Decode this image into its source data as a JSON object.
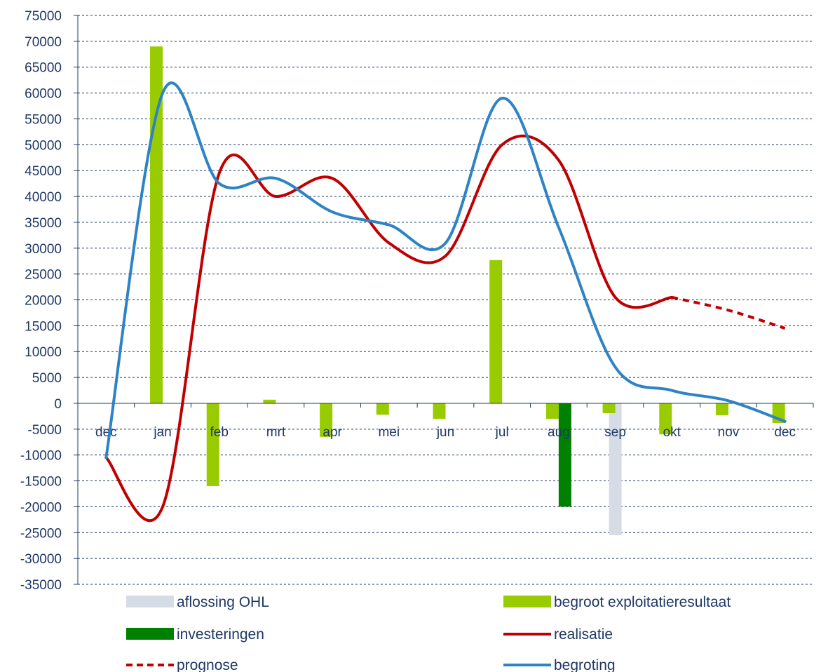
{
  "chart_data": {
    "type": "bar",
    "categories": [
      "dec",
      "jan",
      "feb",
      "mrt",
      "apr",
      "mei",
      "jun",
      "jul",
      "aug",
      "sep",
      "okt",
      "nov",
      "dec"
    ],
    "ylim": [
      -35000,
      75000
    ],
    "ytick_step": 5000,
    "grid": true,
    "legend_position": "bottom",
    "bar_series": [
      {
        "name": "aflossing OHL",
        "color": "#d6dce5",
        "values": [
          null,
          null,
          null,
          null,
          null,
          null,
          null,
          null,
          null,
          -25500,
          null,
          null,
          null
        ]
      },
      {
        "name": "begroot exploitatieresultaat",
        "color": "#99cc00",
        "values": [
          null,
          69000,
          -16000,
          700,
          -6500,
          -2200,
          -3000,
          27700,
          -3000,
          -1900,
          -6000,
          -2300,
          -3800
        ]
      },
      {
        "name": "investeringen",
        "color": "#008000",
        "values": [
          null,
          null,
          null,
          null,
          null,
          null,
          null,
          null,
          -20000,
          null,
          null,
          null,
          null
        ]
      }
    ],
    "line_series": [
      {
        "name": "realisatie",
        "color": "#c00000",
        "dashed": false,
        "values": [
          -10500,
          -20000,
          44500,
          40000,
          43500,
          31000,
          28500,
          50000,
          47000,
          20500,
          20500,
          null,
          null
        ]
      },
      {
        "name": "prognose",
        "color": "#c00000",
        "dashed": true,
        "values": [
          null,
          null,
          null,
          null,
          null,
          null,
          null,
          null,
          null,
          null,
          20500,
          18000,
          14500
        ]
      },
      {
        "name": "begroting",
        "color": "#2e83c5",
        "dashed": false,
        "values": [
          -10500,
          60000,
          42500,
          43500,
          37000,
          34500,
          31000,
          59000,
          34000,
          7000,
          2500,
          500,
          -3500
        ]
      }
    ],
    "legend": [
      {
        "label": "aflossing OHL",
        "kind": "bar",
        "color": "#d6dce5"
      },
      {
        "label": "begroot exploitatieresultaat",
        "kind": "bar",
        "color": "#99cc00"
      },
      {
        "label": "investeringen",
        "kind": "bar",
        "color": "#008000"
      },
      {
        "label": "realisatie",
        "kind": "line",
        "color": "#c00000",
        "dashed": false
      },
      {
        "label": "prognose",
        "kind": "line",
        "color": "#c00000",
        "dashed": true
      },
      {
        "label": "begroting",
        "kind": "line",
        "color": "#2e83c5",
        "dashed": false
      }
    ]
  }
}
